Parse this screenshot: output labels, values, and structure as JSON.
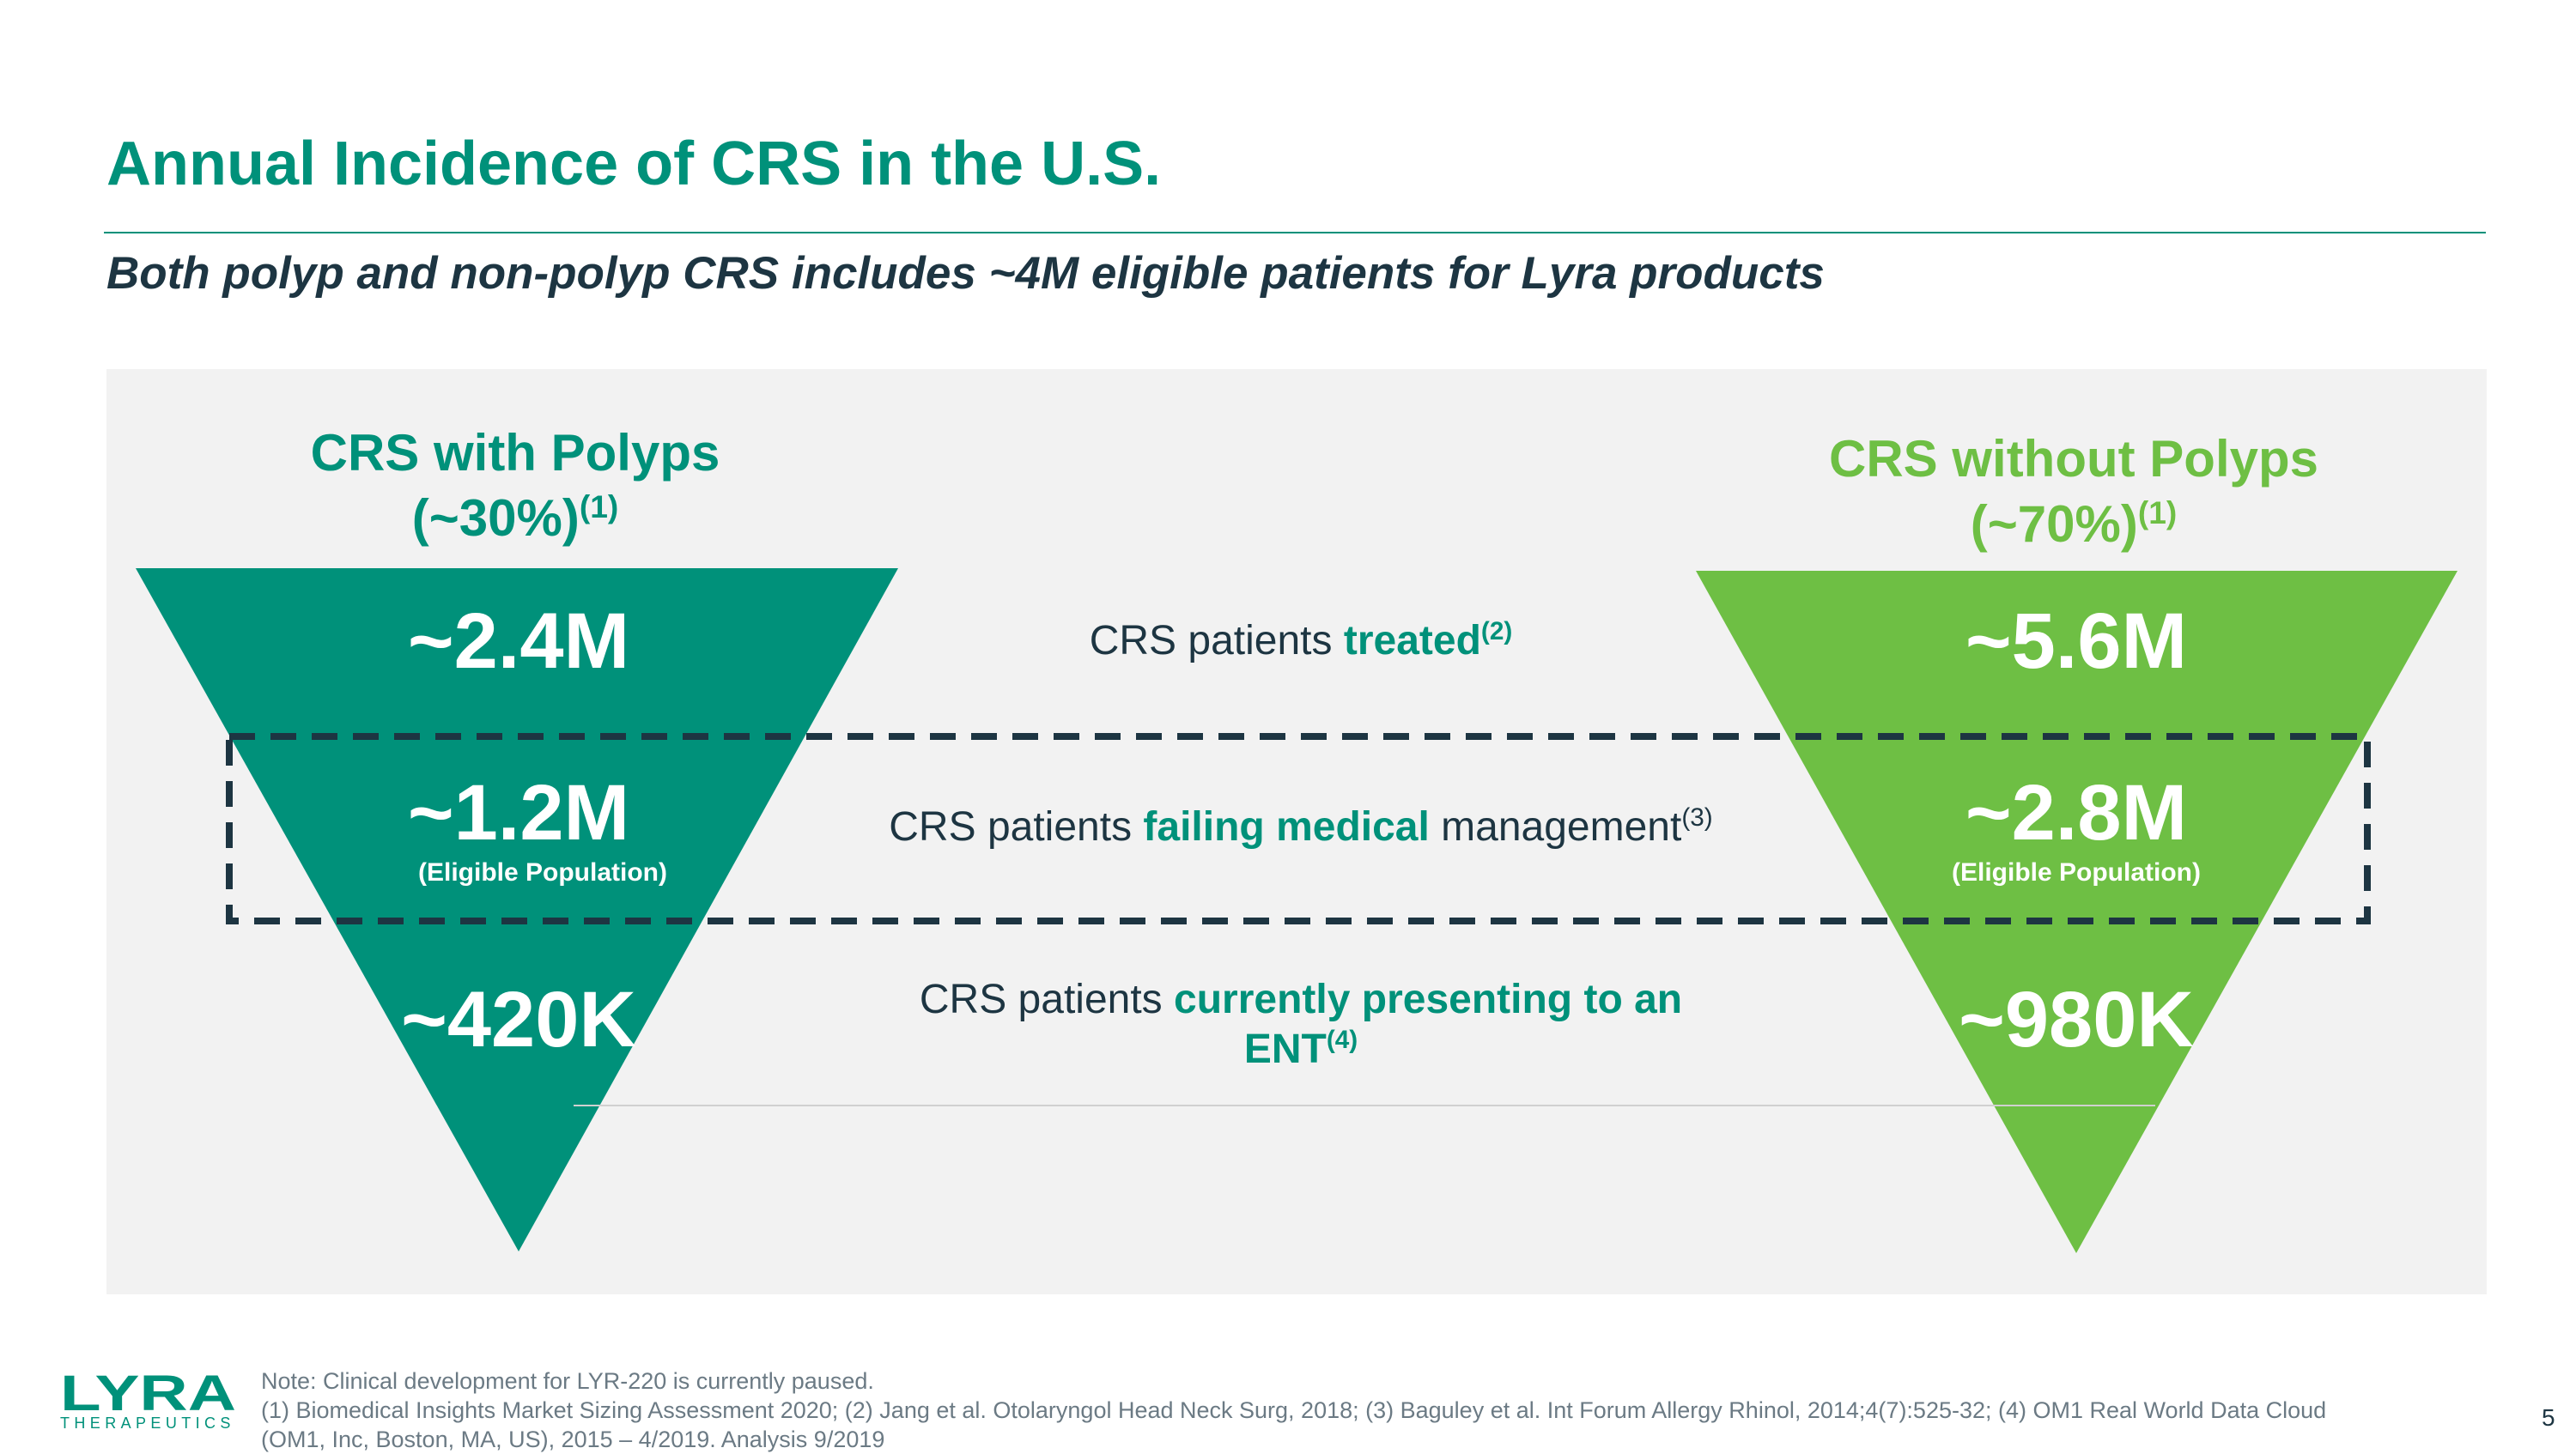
{
  "title": "Annual Incidence of CRS in the U.S.",
  "subtitle": "Both polyp and non-polyp CRS includes ~4M eligible patients for Lyra products",
  "left": {
    "heading": "CRS with Polyps",
    "share": "(~30%)",
    "share_ref": "(1)",
    "treated": "~2.4M",
    "failing": "~1.2M",
    "eligible_label": "(Eligible Population)",
    "ent": "~420K",
    "color": "#00917a"
  },
  "right": {
    "heading": "CRS without Polyps",
    "share": "(~70%)",
    "share_ref": "(1)",
    "treated": "~5.6M",
    "failing": "~2.8M",
    "eligible_label": "(Eligible Population)",
    "ent": "~980K",
    "color": "#6ebf44"
  },
  "rows": {
    "treated": {
      "text": "CRS patients ",
      "highlight": "treated",
      "ref": "(2)"
    },
    "failing": {
      "text": "CRS patients ",
      "highlight": "failing medical",
      "tail": " management",
      "ref": "(3)"
    },
    "ent": {
      "text": "CRS patients ",
      "highlight": "currently presenting to an ENT",
      "ref": "(4)"
    }
  },
  "logo": {
    "name": "LYRA",
    "sub": "THERAPEUTICS"
  },
  "footnotes": {
    "note": "Note: Clinical development for LYR-220 is currently paused.",
    "refs_line1": "(1) Biomedical Insights Market Sizing Assessment 2020; (2) Jang et al. Otolaryngol Head Neck Surg, 2018; (3) Baguley et al. Int Forum Allergy Rhinol, 2014;4(7):525-32; (4) OM1 Real World Data Cloud",
    "refs_line2": "(OM1, Inc, Boston, MA, US), 2015 – 4/2019. Analysis 9/2019"
  },
  "page_number": "5",
  "colors": {
    "teal": "#00917a",
    "green": "#6ebf44",
    "navy": "#1d3542",
    "panel": "#f2f2f2"
  }
}
